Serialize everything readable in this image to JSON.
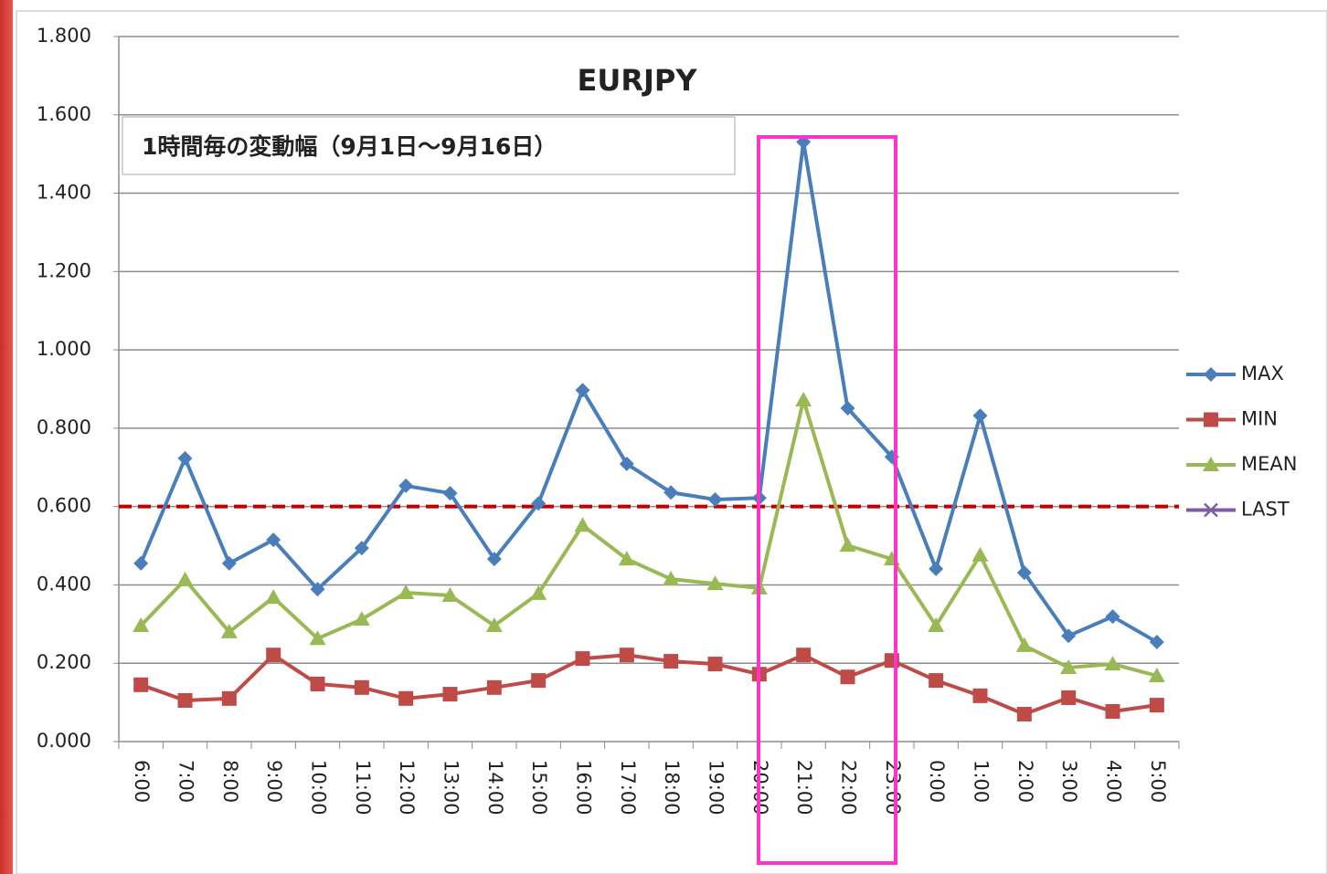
{
  "chart_data": {
    "type": "line",
    "title": "EURJPY",
    "subtitle": "1時間毎の変動幅（9月1日～9月16日）",
    "categories": [
      "6:00",
      "7:00",
      "8:00",
      "9:00",
      "10:00",
      "11:00",
      "12:00",
      "13:00",
      "14:00",
      "15:00",
      "16:00",
      "17:00",
      "18:00",
      "19:00",
      "20:00",
      "21:00",
      "22:00",
      "23:00",
      "0:00",
      "1:00",
      "2:00",
      "3:00",
      "4:00",
      "5:00"
    ],
    "series": [
      {
        "name": "MAX",
        "color": "#4a7ebb",
        "marker": "diamond",
        "values": [
          0.455,
          0.723,
          0.455,
          0.515,
          0.389,
          0.494,
          0.653,
          0.634,
          0.466,
          0.608,
          0.897,
          0.709,
          0.636,
          0.618,
          0.622,
          1.531,
          0.851,
          0.727,
          0.441,
          0.832,
          0.431,
          0.27,
          0.319,
          0.254
        ]
      },
      {
        "name": "MIN",
        "color": "#be4b48",
        "marker": "square",
        "values": [
          0.145,
          0.105,
          0.11,
          0.221,
          0.147,
          0.138,
          0.11,
          0.121,
          0.138,
          0.156,
          0.212,
          0.221,
          0.205,
          0.198,
          0.172,
          0.221,
          0.165,
          0.207,
          0.156,
          0.117,
          0.07,
          0.112,
          0.077,
          0.093
        ]
      },
      {
        "name": "MEAN",
        "color": "#98b954",
        "marker": "triangle",
        "values": [
          0.296,
          0.413,
          0.28,
          0.368,
          0.263,
          0.312,
          0.38,
          0.373,
          0.296,
          0.378,
          0.552,
          0.466,
          0.415,
          0.403,
          0.392,
          0.872,
          0.501,
          0.466,
          0.296,
          0.476,
          0.245,
          0.189,
          0.198,
          0.168
        ]
      },
      {
        "name": "LAST",
        "color": "#7d5fa0",
        "marker": "x",
        "values": [
          null,
          null,
          null,
          null,
          null,
          null,
          null,
          null,
          null,
          null,
          null,
          null,
          null,
          null,
          null,
          null,
          null,
          null,
          null,
          null,
          null,
          null,
          null,
          null
        ]
      }
    ],
    "ylim": [
      0,
      1.8
    ],
    "yticks": [
      {
        "value": 0,
        "label": "0.000"
      },
      {
        "value": 0.2,
        "label": "0.200"
      },
      {
        "value": 0.4,
        "label": "0.400"
      },
      {
        "value": 0.6,
        "label": "0.600"
      },
      {
        "value": 0.8,
        "label": "0.800"
      },
      {
        "value": 1.0,
        "label": "1.000"
      },
      {
        "value": 1.2,
        "label": "1.200"
      },
      {
        "value": 1.4,
        "label": "1.400"
      },
      {
        "value": 1.6,
        "label": "1.600"
      },
      {
        "value": 1.8,
        "label": "1.800"
      }
    ],
    "grid": true,
    "legend": "right",
    "reference_line": {
      "value": 0.6,
      "color": "#c00000"
    }
  }
}
